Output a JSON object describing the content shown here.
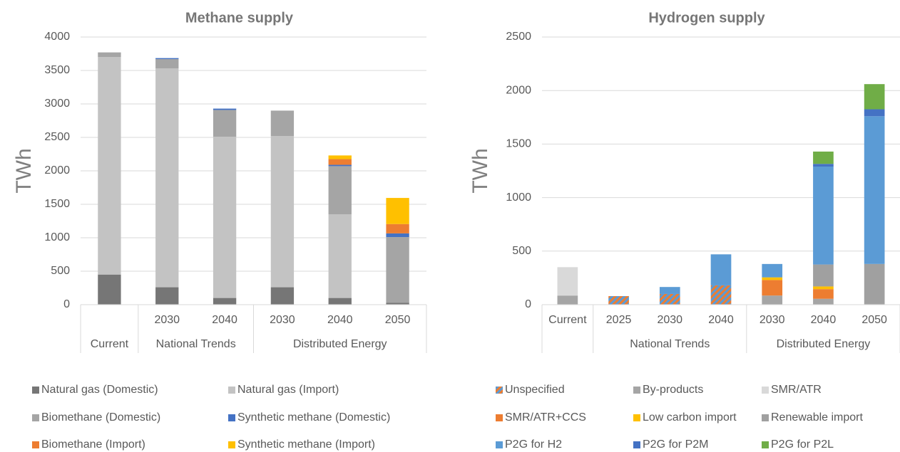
{
  "chart_data": [
    {
      "type": "stacked_bar",
      "title": "Methane supply",
      "y_label": "TWh",
      "categories": [
        null,
        "2030",
        "2040",
        "2030",
        "2040",
        "2050"
      ],
      "groups": [
        {
          "label": "Current",
          "size": 1
        },
        {
          "label": "National Trends",
          "size": 2
        },
        {
          "label": "Distributed Energy",
          "size": 3
        }
      ],
      "ylim": [
        0,
        4000
      ],
      "yticks": [
        0,
        500,
        1000,
        1500,
        2000,
        2500,
        3000,
        3500,
        4000
      ],
      "grid": true,
      "series": [
        {
          "name": "Natural gas (Domestic)",
          "color": "#767676",
          "values": [
            450,
            260,
            100,
            260,
            100,
            30
          ]
        },
        {
          "name": "Natural gas (Import)",
          "color": "#c3c3c3",
          "values": [
            3250,
            3270,
            2410,
            2260,
            1250,
            0
          ]
        },
        {
          "name": "Biomethane (Domestic)",
          "color": "#a5a5a5",
          "values": [
            70,
            140,
            400,
            380,
            720,
            980
          ]
        },
        {
          "name": "Synthetic methane (Domestic)",
          "color": "#4472c4",
          "values": [
            0,
            15,
            20,
            0,
            20,
            55
          ]
        },
        {
          "name": "Biomethane (Import)",
          "color": "#ed7d31",
          "values": [
            0,
            0,
            0,
            0,
            85,
            140
          ]
        },
        {
          "name": "Synthetic methane (Import)",
          "color": "#ffc000",
          "values": [
            0,
            0,
            0,
            0,
            55,
            390
          ]
        }
      ]
    },
    {
      "type": "stacked_bar",
      "title": "Hydrogen supply",
      "y_label": "TWh",
      "categories": [
        "Current",
        "2025",
        "2030",
        "2040",
        "2030",
        "2040",
        "2050"
      ],
      "groups": [
        {
          "label": null,
          "size": 1
        },
        {
          "label": "National Trends",
          "size": 3
        },
        {
          "label": "Distributed Energy",
          "size": 3
        }
      ],
      "ylim": [
        0,
        2500
      ],
      "yticks": [
        0,
        500,
        1000,
        1500,
        2000,
        2500
      ],
      "grid": true,
      "series": [
        {
          "name": "Unspecified",
          "color": "#ed7d31",
          "hatch_color": "#5b9bd5",
          "hatch": true,
          "values": [
            0,
            80,
            100,
            180,
            0,
            0,
            0
          ]
        },
        {
          "name": "By-products",
          "color": "#a5a5a5",
          "values": [
            85,
            0,
            0,
            0,
            85,
            55,
            10
          ]
        },
        {
          "name": "SMR/ATR",
          "color": "#d9d9d9",
          "values": [
            265,
            0,
            0,
            0,
            0,
            0,
            0
          ]
        },
        {
          "name": "SMR/ATR+CCS",
          "color": "#ed7d31",
          "values": [
            0,
            0,
            0,
            0,
            145,
            90,
            0
          ]
        },
        {
          "name": "Low carbon import",
          "color": "#ffc000",
          "values": [
            0,
            0,
            0,
            0,
            25,
            25,
            0
          ]
        },
        {
          "name": "Renewable import",
          "color": "#a0a0a0",
          "values": [
            0,
            0,
            0,
            0,
            0,
            205,
            370
          ]
        },
        {
          "name": "P2G for H2",
          "color": "#5b9bd5",
          "values": [
            0,
            0,
            65,
            290,
            125,
            915,
            1380
          ]
        },
        {
          "name": "P2G for P2M",
          "color": "#4472c4",
          "values": [
            0,
            0,
            0,
            0,
            0,
            25,
            65
          ]
        },
        {
          "name": "P2G for P2L",
          "color": "#70ad47",
          "values": [
            0,
            0,
            0,
            0,
            0,
            115,
            235
          ]
        }
      ]
    }
  ]
}
